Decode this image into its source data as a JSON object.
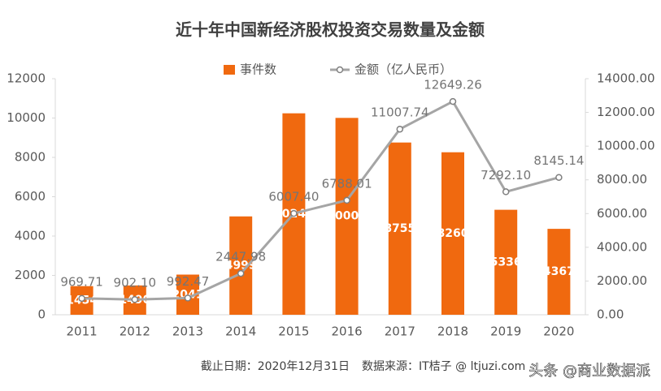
{
  "chart_data": {
    "type": "bar-line",
    "title": "近十年中国新经济股权投资交易数量及金额",
    "categories": [
      "2011",
      "2012",
      "2013",
      "2014",
      "2015",
      "2016",
      "2017",
      "2018",
      "2019",
      "2020"
    ],
    "series": [
      {
        "name": "事件数",
        "type": "bar",
        "color": "#f0690f",
        "values": [
          1454,
          1490,
          2041,
          4999,
          10240,
          10007,
          8755,
          8260,
          5336,
          4367
        ]
      },
      {
        "name": "金额（亿人民币）",
        "type": "line",
        "axis": "y2",
        "color": "#a5a5a5",
        "values": [
          969.71,
          902.1,
          992.47,
          2447.98,
          6007.4,
          6788.01,
          11007.74,
          12649.26,
          7292.1,
          8145.14
        ],
        "value_labels": [
          "969.71",
          "902.10",
          "992.47",
          "2447.98",
          "6007.40",
          "6788.01",
          "11007.74",
          "12649.26",
          "7292.10",
          "8145.14"
        ]
      }
    ],
    "ylim": [
      0,
      12000
    ],
    "yticks": [
      0,
      2000,
      4000,
      6000,
      8000,
      10000,
      12000
    ],
    "y2lim": [
      0,
      14000
    ],
    "y2ticks": [
      {
        "value": 0,
        "label": "0.00"
      },
      {
        "value": 2000,
        "label": "2000.00"
      },
      {
        "value": 4000,
        "label": "4000.00"
      },
      {
        "value": 6000,
        "label": "6000.00"
      },
      {
        "value": 8000,
        "label": "8000.00"
      },
      {
        "value": 10000,
        "label": "10000.00"
      },
      {
        "value": 12000,
        "label": "12000.00"
      },
      {
        "value": 14000,
        "label": "14000.00"
      }
    ],
    "grid": false,
    "legend": "top",
    "footnote": "截止日期：2020年12月31日",
    "source": "数据来源：IT桔子 @ ltjuzi.com",
    "watermark": "头条 @商业数据派"
  }
}
